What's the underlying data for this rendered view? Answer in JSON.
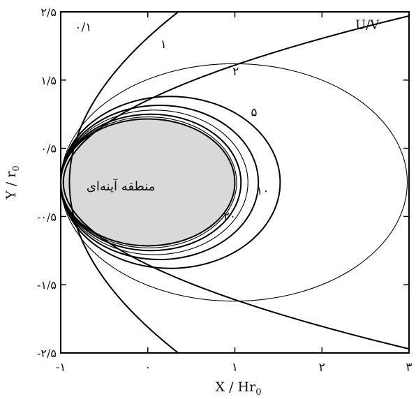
{
  "chart_data": {
    "type": "line",
    "title": "",
    "xlabel": "X / Hr",
    "xlabel_sub": "0",
    "ylabel": "Y / r",
    "ylabel_sub": "0",
    "xlim": [
      -1,
      3
    ],
    "ylim": [
      -2.5,
      2.5
    ],
    "x_ticks": [
      {
        "value": -1,
        "label": "-۱"
      },
      {
        "value": 0,
        "label": "۰"
      },
      {
        "value": 1,
        "label": "۱"
      },
      {
        "value": 2,
        "label": "۲"
      },
      {
        "value": 3,
        "label": "۳"
      }
    ],
    "y_ticks": [
      {
        "value": 2.5,
        "label": "۲/۵"
      },
      {
        "value": 1.5,
        "label": "۱/۵"
      },
      {
        "value": 0.5,
        "label": "۰/۵"
      },
      {
        "value": -0.5,
        "label": "-۰/۵"
      },
      {
        "value": -1.5,
        "label": "-۱/۵"
      },
      {
        "value": -2.5,
        "label": "-۲/۵"
      }
    ],
    "parameter_label": "U/V",
    "region": {
      "label": "منطقه آینه‌ای",
      "color": "#d9d9d9",
      "x_min": -1,
      "x_max": 1,
      "y_half": 0.93
    },
    "curves": [
      {
        "label": "۰/۱",
        "kind": "hyperbola",
        "vertex_x": -0.97,
        "focus_x": -1,
        "thick": true
      },
      {
        "label": "۱",
        "kind": "hyperbola",
        "vertex_x": -0.9,
        "focus_x": -1,
        "thick": true
      },
      {
        "label": "۲",
        "kind": "ellipse",
        "x_min": -1,
        "x_max": 2.98,
        "y_half": 1.74,
        "thick": false
      },
      {
        "label": "۵",
        "kind": "ellipse",
        "x_min": -1,
        "x_max": 1.52,
        "y_half": 1.26,
        "thick": true
      },
      {
        "label": "۱۰",
        "kind": "ellipse",
        "x_min": -1,
        "x_max": 1.27,
        "y_half": 1.13,
        "thick": true
      },
      {
        "label": "",
        "kind": "ellipse",
        "x_min": -1,
        "x_max": 1.15,
        "y_half": 1.06,
        "thick": false
      },
      {
        "label": "۲۰",
        "kind": "ellipse",
        "x_min": -1,
        "x_max": 1.07,
        "y_half": 1.0,
        "thick": true
      },
      {
        "label": "",
        "kind": "ellipse",
        "x_min": -1,
        "x_max": 1.02,
        "y_half": 0.96,
        "thick": false
      }
    ],
    "grid": false,
    "legend": "none"
  }
}
